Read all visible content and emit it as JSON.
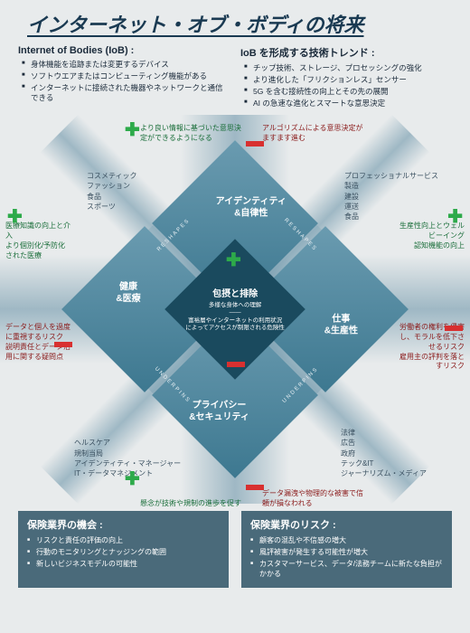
{
  "title": "インターネット・オブ・ボディの将来",
  "left_col": {
    "title": "Internet of Bodies (IoB) :",
    "items": [
      "身体機能を追跡または変更するデバイス",
      "ソフトウエアまたはコンピューティング機能がある",
      "インターネットに接続された機器やネットワークと通信できる"
    ]
  },
  "right_col": {
    "title": "IoB を形成する技術トレンド :",
    "items": [
      "チップ技術、ストレージ、プロセッシングの強化",
      "より進化した「フリクションレス」センサー",
      "5G を含む接続性の向上とその先の展開",
      "AI の急速な進化とスマートな意思決定"
    ]
  },
  "center": {
    "title": "包摂と排除",
    "text": "多様な身体への理解\n――\n富裕層やインターネットの利用状況によってアクセスが制限される危険性"
  },
  "petals": {
    "top": "アイデンティティ\n&自律性",
    "right": "仕事\n&生産性",
    "bottom": "プライバシー\n&セキュリティ",
    "left": "健康\n&医療"
  },
  "corners": {
    "tl": "コスメティック\nファッション\n食品\nスポーツ",
    "tr": "プロフェッショナルサービス\n製造\n建設\n運送\n食品",
    "bl": "ヘルスケア\n規制当局\nアイデンティティ・マネージャー\nIT・データマネジメント",
    "br": "法律\n広告\n政府\nテック&IT\nジャーナリズム・メディア"
  },
  "sides": {
    "lt": "医療知識の向上と介入\nより個別化/予防化された医療",
    "lb": "データと個人を過度に重視するリスク\n説明責任とデータ活用に関する疑問点",
    "rt": "生産性向上とウェルビーイング\n認知機能の向上",
    "rb": "労働者の権利を侵害し、モラルを低下させるリスク\n雇用主の評判を落とすリスク"
  },
  "pm": {
    "ttl": "より良い情報に基づいた意思決定ができるようになる",
    "ttr": "アルゴリズムによる意思決定がますます進む",
    "bbl": "懸念が技術や規制の進歩を促す",
    "bbr": "データ漏洩や物理的な被害で信頼が損なわれる"
  },
  "edge_labels": {
    "reshapes": "RESHAPES",
    "underpins": "UNDERPINS"
  },
  "box_left": {
    "title": "保険業界の機会 :",
    "items": [
      "リスクと責任の評価の向上",
      "行動のモニタリングとナッジングの範囲",
      "新しいビジネスモデルの可能性"
    ]
  },
  "box_right": {
    "title": "保険業界のリスク :",
    "items": [
      "顧客の混乱や不信感の増大",
      "風評被害が発生する可能性が増大",
      "カスタマーサービス、データ/法務チームに新たな負担がかかる"
    ]
  },
  "colors": {
    "bg": "#e8ebec",
    "title": "#1a3a52",
    "petal1": "#6a9bb0",
    "petal2": "#3d7890",
    "center": "#1a4a5e",
    "plus": "#2daa4a",
    "minus": "#d83030",
    "box": "#4a6a7a"
  }
}
